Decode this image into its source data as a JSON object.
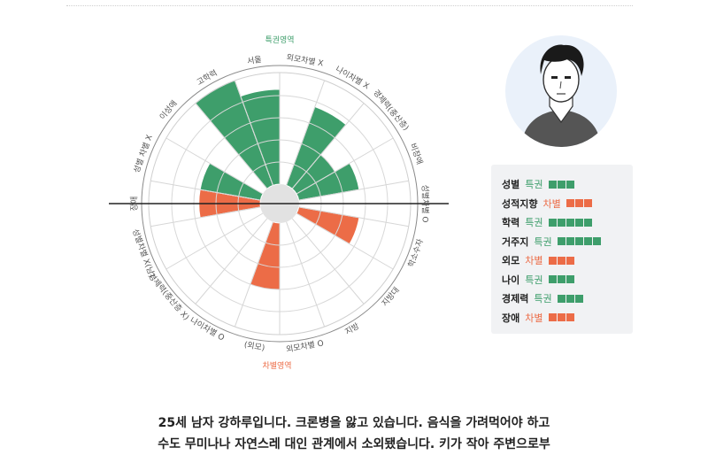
{
  "chart_data": {
    "type": "radar-bar",
    "top_zone_label": "특권영역",
    "bottom_zone_label": "차별영역",
    "colors": {
      "privilege": "#3e9e6b",
      "discrimination": "#ec6c47"
    },
    "categories": [
      {
        "label": "외모차별 X",
        "value": 0
      },
      {
        "label": "나이차별 X",
        "value": 0.75
      },
      {
        "label": "경제력(중산층)",
        "value": 0.4
      },
      {
        "label": "비장애",
        "value": 0.55
      },
      {
        "label": "성별차별 O",
        "value": 0
      },
      {
        "label": "학소수자",
        "value": 0.55
      },
      {
        "label": "지방대",
        "value": 0
      },
      {
        "label": "지방",
        "value": 0
      },
      {
        "label": "외모차별 O",
        "value": 0
      },
      {
        "label": "(외모)",
        "value": 0.6
      },
      {
        "label": "나이차별 O",
        "value": 0
      },
      {
        "label": "경제력(중산층 X)",
        "value": 0
      },
      {
        "label": "성별차별 X(남)",
        "value": 0
      },
      {
        "label": "장애",
        "value": 0.55
      },
      {
        "label": "성별 차별 X",
        "value": 0.55
      },
      {
        "label": "이성애",
        "value": 0
      },
      {
        "label": "고학력",
        "value": 1.0
      },
      {
        "label": "서울",
        "value": 0.85
      }
    ]
  },
  "profile": {
    "rows": [
      {
        "name": "성별",
        "tag": "특권",
        "status": "good",
        "count": 3
      },
      {
        "name": "성적지향",
        "tag": "차별",
        "status": "bad",
        "count": 3
      },
      {
        "name": "학력",
        "tag": "특권",
        "status": "good",
        "count": 5
      },
      {
        "name": "거주지",
        "tag": "특권",
        "status": "good",
        "count": 5
      },
      {
        "name": "외모",
        "tag": "차별",
        "status": "bad",
        "count": 3
      },
      {
        "name": "나이",
        "tag": "특권",
        "status": "good",
        "count": 3
      },
      {
        "name": "경제력",
        "tag": "특권",
        "status": "good",
        "count": 3
      },
      {
        "name": "장애",
        "tag": "차별",
        "status": "bad",
        "count": 3
      }
    ]
  },
  "story": {
    "line1": "25세 남자 강하루입니다. 크론병을 앓고 있습니다. 음식을 가려먹어야 하고",
    "line2": "수도 무미나나 자연스레 대인 관계에서 소외됐습니다. 키가 작아 주변으로부"
  }
}
